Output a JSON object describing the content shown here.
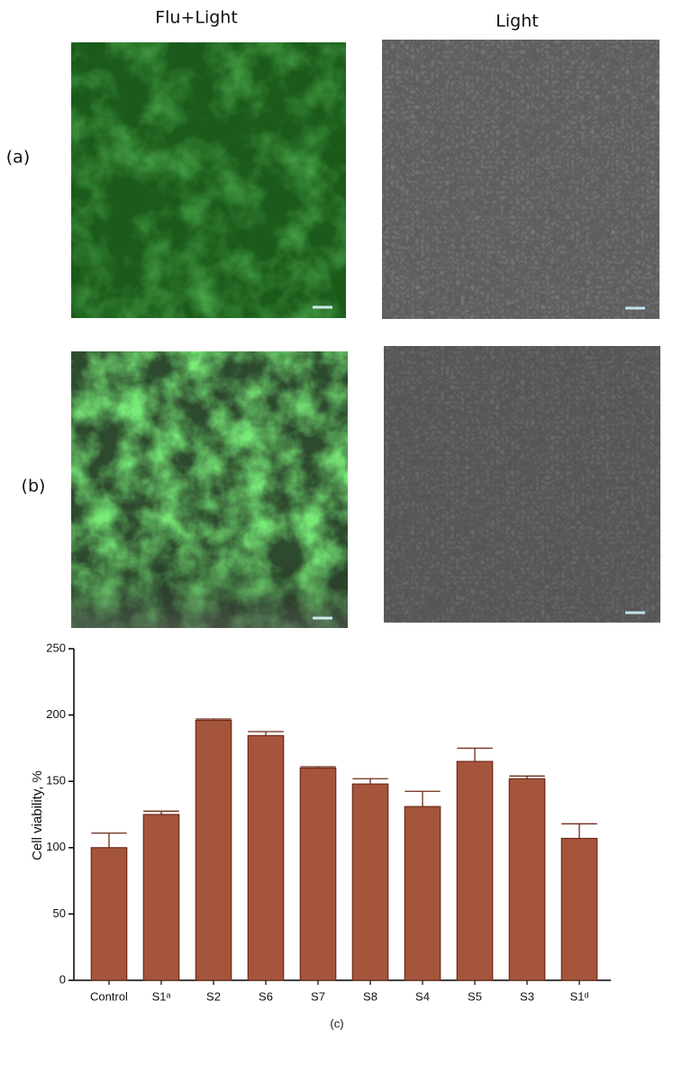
{
  "panels": {
    "column_titles": [
      "Flu+Light",
      "Light"
    ],
    "row_labels": [
      "(a)",
      "(b)"
    ]
  },
  "chart_data": {
    "type": "bar",
    "caption": "(c)",
    "y_label": "Cell viability, %",
    "categories": [
      "Control",
      "S1ᵃ",
      "S2",
      "S6",
      "S7",
      "S8",
      "S4",
      "S5",
      "S3",
      "S1ᵈ"
    ],
    "values": [
      100,
      125,
      196,
      184.5,
      160,
      148,
      131,
      165,
      152,
      107
    ],
    "errors": [
      11,
      2.5,
      1,
      3,
      1,
      4,
      11.5,
      10,
      2,
      11
    ],
    "color": "#a4553b",
    "edge_color": "#6e2a18",
    "ylim": [
      0,
      250
    ],
    "yticks": [
      0,
      50,
      100,
      150,
      200,
      250
    ]
  }
}
